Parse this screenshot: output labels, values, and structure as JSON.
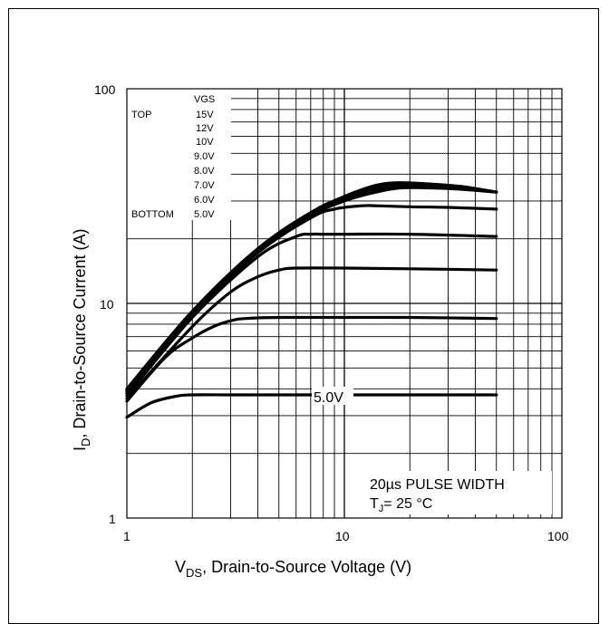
{
  "chart_data": {
    "type": "line",
    "x_scale": "log",
    "y_scale": "log",
    "xlim": [
      1,
      100
    ],
    "ylim": [
      1,
      100
    ],
    "grid": true,
    "xlabel_main": "V",
    "xlabel_sub": "DS",
    "xlabel_rest": ", Drain-to-Source Voltage (V)",
    "ylabel_main": "I",
    "ylabel_sub": "D",
    "ylabel_rest": ",  Drain-to-Source Current (A)",
    "x_ticks": [
      "1",
      "10",
      "100"
    ],
    "y_ticks": [
      "1",
      "10",
      "100"
    ],
    "legend": {
      "header": "VGS",
      "top_label": "TOP",
      "bottom_label": "BOTTOM",
      "entries": [
        "15V",
        "12V",
        "10V",
        "9.0V",
        "8.0V",
        "7.0V",
        "6.0V",
        "5.0V"
      ]
    },
    "curve_label": "5.0V",
    "annotation_line1": "20µs PULSE WIDTH",
    "annotation_line2_main": "T",
    "annotation_line2_sub": "J",
    "annotation_line2_rest": "= 25 °C",
    "series": [
      {
        "name": "15V",
        "x": [
          1,
          2,
          4,
          7,
          10,
          14,
          18,
          25,
          35,
          50
        ],
        "y": [
          4.0,
          9.2,
          18,
          26.5,
          31.5,
          35.5,
          36.5,
          36,
          35,
          33
        ]
      },
      {
        "name": "12V",
        "x": [
          1,
          2,
          4,
          7,
          10,
          14,
          18,
          25,
          35,
          50
        ],
        "y": [
          3.95,
          9.1,
          17.8,
          26.2,
          31,
          35,
          36,
          35.5,
          34.5,
          33
        ]
      },
      {
        "name": "10V",
        "x": [
          1,
          2,
          4,
          7,
          10,
          14,
          18,
          25,
          35,
          50
        ],
        "y": [
          3.9,
          9.0,
          17.6,
          26,
          30.5,
          34,
          35,
          35,
          34,
          33
        ]
      },
      {
        "name": "9.0V",
        "x": [
          1,
          2,
          4,
          7,
          10,
          14,
          18,
          25,
          35,
          50
        ],
        "y": [
          3.85,
          8.9,
          17.4,
          25.5,
          30,
          33,
          34.5,
          34.5,
          34,
          33
        ]
      },
      {
        "name": "8.0V",
        "x": [
          1,
          2,
          4,
          7,
          9,
          12,
          14,
          20,
          30,
          50
        ],
        "y": [
          3.8,
          8.8,
          17.2,
          25,
          27.5,
          28.5,
          28.5,
          28.2,
          28,
          27.5
        ]
      },
      {
        "name": "7.0V",
        "x": [
          1,
          2,
          4,
          6,
          7,
          8,
          10,
          20,
          50
        ],
        "y": [
          3.7,
          8.6,
          16.5,
          20.5,
          21,
          21,
          21,
          21,
          20.5
        ]
      },
      {
        "name": "6.0V",
        "x": [
          1,
          2,
          3,
          4,
          5,
          6,
          10,
          20,
          50
        ],
        "y": [
          3.6,
          7.8,
          11.3,
          13.3,
          14.3,
          14.6,
          14.6,
          14.5,
          14.3
        ]
      },
      {
        "name": "5.0V",
        "x": [
          1,
          1.5,
          2,
          2.5,
          3,
          3.5,
          5,
          10,
          20,
          50
        ],
        "y": [
          3.5,
          5.6,
          6.9,
          7.8,
          8.3,
          8.5,
          8.6,
          8.6,
          8.6,
          8.5
        ]
      },
      {
        "name": "5.0V",
        "x": [
          1,
          1.3,
          1.7,
          2,
          3,
          5,
          10,
          20,
          50
        ],
        "y": [
          2.95,
          3.45,
          3.7,
          3.75,
          3.75,
          3.75,
          3.75,
          3.75,
          3.75
        ]
      }
    ]
  }
}
